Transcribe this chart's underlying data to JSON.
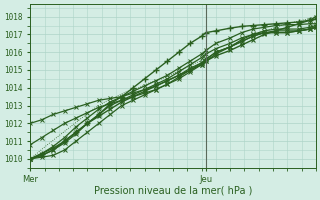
{
  "xlabel": "Pression niveau de la mer( hPa )",
  "bg_color": "#d4ede4",
  "grid_color": "#aed4c8",
  "line_color": "#2a6020",
  "dark_line": "#3a5a2a",
  "vline_color": "#5a6a5a",
  "x_ticks_labels": [
    "Mer",
    "Jeu"
  ],
  "x_ticks_pos": [
    0.0,
    0.615
  ],
  "vline_pos": 0.615,
  "ylim": [
    1009.5,
    1018.7
  ],
  "xlim": [
    0.0,
    1.0
  ],
  "yticks": [
    1010,
    1011,
    1012,
    1013,
    1014,
    1015,
    1016,
    1017,
    1018
  ],
  "series": [
    {
      "points": [
        [
          0.0,
          1010.0
        ],
        [
          0.04,
          1010.2
        ],
        [
          0.08,
          1010.5
        ],
        [
          0.12,
          1011.0
        ],
        [
          0.16,
          1011.5
        ],
        [
          0.2,
          1012.0
        ],
        [
          0.24,
          1012.4
        ],
        [
          0.28,
          1012.8
        ],
        [
          0.32,
          1013.2
        ],
        [
          0.36,
          1013.5
        ],
        [
          0.4,
          1013.8
        ],
        [
          0.44,
          1014.1
        ],
        [
          0.48,
          1014.4
        ],
        [
          0.52,
          1014.7
        ],
        [
          0.56,
          1015.0
        ],
        [
          0.6,
          1015.3
        ],
        [
          0.615,
          1015.5
        ],
        [
          0.65,
          1015.8
        ],
        [
          0.7,
          1016.1
        ],
        [
          0.74,
          1016.4
        ],
        [
          0.78,
          1016.7
        ],
        [
          0.82,
          1017.0
        ],
        [
          0.86,
          1017.2
        ],
        [
          0.9,
          1017.4
        ],
        [
          0.94,
          1017.6
        ],
        [
          0.98,
          1017.8
        ],
        [
          1.0,
          1018.0
        ]
      ],
      "color": "#2a6020",
      "lw": 1.0,
      "ls": "-",
      "marker": "x",
      "ms": 3.5,
      "mew": 0.8
    },
    {
      "points": [
        [
          0.0,
          1010.0
        ],
        [
          0.04,
          1010.3
        ],
        [
          0.08,
          1010.7
        ],
        [
          0.12,
          1011.2
        ],
        [
          0.16,
          1011.8
        ],
        [
          0.2,
          1012.3
        ],
        [
          0.24,
          1012.8
        ],
        [
          0.28,
          1013.2
        ],
        [
          0.32,
          1013.5
        ],
        [
          0.36,
          1013.8
        ],
        [
          0.4,
          1014.1
        ],
        [
          0.44,
          1014.4
        ],
        [
          0.48,
          1014.7
        ],
        [
          0.52,
          1015.1
        ],
        [
          0.56,
          1015.5
        ],
        [
          0.6,
          1015.9
        ],
        [
          0.615,
          1016.1
        ],
        [
          0.65,
          1016.5
        ],
        [
          0.7,
          1016.8
        ],
        [
          0.74,
          1017.1
        ],
        [
          0.78,
          1017.3
        ],
        [
          0.82,
          1017.4
        ],
        [
          0.86,
          1017.5
        ],
        [
          0.9,
          1017.55
        ],
        [
          0.94,
          1017.55
        ],
        [
          0.98,
          1017.6
        ],
        [
          1.0,
          1017.6
        ]
      ],
      "color": "#2a6020",
      "lw": 0.9,
      "ls": "-",
      "marker": "x",
      "ms": 3.0,
      "mew": 0.7
    },
    {
      "points": [
        [
          0.0,
          1010.0
        ],
        [
          0.04,
          1010.2
        ],
        [
          0.08,
          1010.5
        ],
        [
          0.12,
          1010.9
        ],
        [
          0.16,
          1011.4
        ],
        [
          0.2,
          1012.0
        ],
        [
          0.24,
          1012.5
        ],
        [
          0.28,
          1013.0
        ],
        [
          0.32,
          1013.3
        ],
        [
          0.36,
          1013.6
        ],
        [
          0.4,
          1013.9
        ],
        [
          0.44,
          1014.2
        ],
        [
          0.48,
          1014.5
        ],
        [
          0.52,
          1014.9
        ],
        [
          0.56,
          1015.3
        ],
        [
          0.6,
          1015.7
        ],
        [
          0.615,
          1015.9
        ],
        [
          0.65,
          1016.2
        ],
        [
          0.7,
          1016.5
        ],
        [
          0.74,
          1016.8
        ],
        [
          0.78,
          1017.0
        ],
        [
          0.82,
          1017.1
        ],
        [
          0.86,
          1017.1
        ],
        [
          0.9,
          1017.1
        ],
        [
          0.94,
          1017.2
        ],
        [
          0.98,
          1017.3
        ],
        [
          1.0,
          1017.4
        ]
      ],
      "color": "#2a6020",
      "lw": 0.9,
      "ls": "-",
      "marker": "x",
      "ms": 3.0,
      "mew": 0.7
    },
    {
      "points": [
        [
          0.0,
          1010.0
        ],
        [
          0.04,
          1010.1
        ],
        [
          0.08,
          1010.2
        ],
        [
          0.12,
          1010.5
        ],
        [
          0.16,
          1011.0
        ],
        [
          0.2,
          1011.5
        ],
        [
          0.24,
          1012.0
        ],
        [
          0.28,
          1012.5
        ],
        [
          0.32,
          1013.0
        ],
        [
          0.36,
          1013.3
        ],
        [
          0.4,
          1013.6
        ],
        [
          0.44,
          1013.9
        ],
        [
          0.48,
          1014.2
        ],
        [
          0.52,
          1014.6
        ],
        [
          0.56,
          1015.0
        ],
        [
          0.6,
          1015.4
        ],
        [
          0.615,
          1015.6
        ],
        [
          0.65,
          1016.0
        ],
        [
          0.7,
          1016.3
        ],
        [
          0.74,
          1016.6
        ],
        [
          0.78,
          1016.9
        ],
        [
          0.82,
          1017.1
        ],
        [
          0.86,
          1017.1
        ],
        [
          0.9,
          1017.1
        ],
        [
          0.94,
          1017.2
        ],
        [
          0.98,
          1017.3
        ],
        [
          1.0,
          1017.4
        ]
      ],
      "color": "#2a6020",
      "lw": 0.9,
      "ls": "-",
      "marker": "x",
      "ms": 3.0,
      "mew": 0.7
    },
    {
      "points": [
        [
          0.0,
          1010.8
        ],
        [
          0.04,
          1011.2
        ],
        [
          0.08,
          1011.6
        ],
        [
          0.12,
          1012.0
        ],
        [
          0.16,
          1012.3
        ],
        [
          0.2,
          1012.6
        ],
        [
          0.24,
          1012.9
        ],
        [
          0.28,
          1013.1
        ],
        [
          0.32,
          1013.3
        ],
        [
          0.36,
          1013.5
        ],
        [
          0.4,
          1013.7
        ],
        [
          0.44,
          1013.9
        ],
        [
          0.48,
          1014.2
        ],
        [
          0.52,
          1014.5
        ],
        [
          0.56,
          1014.9
        ],
        [
          0.6,
          1015.3
        ],
        [
          0.615,
          1015.5
        ],
        [
          0.65,
          1015.9
        ],
        [
          0.7,
          1016.3
        ],
        [
          0.74,
          1016.6
        ],
        [
          0.78,
          1016.9
        ],
        [
          0.82,
          1017.1
        ],
        [
          0.86,
          1017.2
        ],
        [
          0.9,
          1017.2
        ],
        [
          0.94,
          1017.2
        ],
        [
          0.98,
          1017.3
        ],
        [
          1.0,
          1017.4
        ]
      ],
      "color": "#2a6020",
      "lw": 0.9,
      "ls": "-",
      "marker": "x",
      "ms": 3.0,
      "mew": 0.7
    },
    {
      "points": [
        [
          0.0,
          1012.0
        ],
        [
          0.04,
          1012.2
        ],
        [
          0.08,
          1012.5
        ],
        [
          0.12,
          1012.7
        ],
        [
          0.16,
          1012.9
        ],
        [
          0.2,
          1013.1
        ],
        [
          0.24,
          1013.3
        ],
        [
          0.28,
          1013.4
        ],
        [
          0.32,
          1013.5
        ],
        [
          0.36,
          1013.7
        ],
        [
          0.4,
          1013.9
        ],
        [
          0.44,
          1014.1
        ],
        [
          0.48,
          1014.4
        ],
        [
          0.52,
          1014.7
        ],
        [
          0.56,
          1015.1
        ],
        [
          0.6,
          1015.4
        ],
        [
          0.615,
          1015.6
        ],
        [
          0.65,
          1016.0
        ],
        [
          0.7,
          1016.3
        ],
        [
          0.74,
          1016.7
        ],
        [
          0.78,
          1017.0
        ],
        [
          0.82,
          1017.2
        ],
        [
          0.86,
          1017.3
        ],
        [
          0.9,
          1017.3
        ],
        [
          0.94,
          1017.3
        ],
        [
          0.98,
          1017.4
        ],
        [
          1.0,
          1017.5
        ]
      ],
      "color": "#2a6020",
      "lw": 0.9,
      "ls": "-",
      "marker": "x",
      "ms": 3.0,
      "mew": 0.7
    },
    {
      "points": [
        [
          0.0,
          1010.0
        ],
        [
          0.04,
          1010.3
        ],
        [
          0.08,
          1010.6
        ],
        [
          0.12,
          1011.0
        ],
        [
          0.16,
          1011.5
        ],
        [
          0.2,
          1012.0
        ],
        [
          0.24,
          1012.5
        ],
        [
          0.28,
          1013.1
        ],
        [
          0.32,
          1013.5
        ],
        [
          0.36,
          1014.0
        ],
        [
          0.4,
          1014.5
        ],
        [
          0.44,
          1015.0
        ],
        [
          0.48,
          1015.5
        ],
        [
          0.52,
          1016.0
        ],
        [
          0.56,
          1016.5
        ],
        [
          0.6,
          1016.9
        ],
        [
          0.615,
          1017.1
        ],
        [
          0.65,
          1017.2
        ],
        [
          0.7,
          1017.35
        ],
        [
          0.74,
          1017.45
        ],
        [
          0.78,
          1017.5
        ],
        [
          0.82,
          1017.55
        ],
        [
          0.86,
          1017.6
        ],
        [
          0.9,
          1017.65
        ],
        [
          0.94,
          1017.7
        ],
        [
          0.98,
          1017.8
        ],
        [
          1.0,
          1017.85
        ]
      ],
      "color": "#2a6020",
      "lw": 1.0,
      "ls": "-",
      "marker": "+",
      "ms": 4.0,
      "mew": 1.0
    },
    {
      "points": [
        [
          0.0,
          1010.0
        ],
        [
          0.03,
          1010.4
        ],
        [
          0.06,
          1010.8
        ],
        [
          0.1,
          1011.3
        ],
        [
          0.14,
          1011.8
        ],
        [
          0.18,
          1012.3
        ],
        [
          0.22,
          1012.8
        ],
        [
          0.26,
          1013.2
        ],
        [
          0.3,
          1013.5
        ],
        [
          0.34,
          1013.8
        ],
        [
          0.38,
          1014.0
        ],
        [
          0.42,
          1014.3
        ],
        [
          0.46,
          1014.5
        ],
        [
          0.5,
          1014.8
        ],
        [
          0.54,
          1015.1
        ],
        [
          0.58,
          1015.4
        ],
        [
          0.615,
          1015.6
        ],
        [
          0.65,
          1016.0
        ],
        [
          0.7,
          1016.3
        ],
        [
          0.74,
          1016.7
        ],
        [
          0.78,
          1017.0
        ],
        [
          0.82,
          1017.2
        ],
        [
          0.86,
          1017.4
        ],
        [
          0.9,
          1017.6
        ],
        [
          0.94,
          1017.75
        ],
        [
          0.98,
          1017.9
        ],
        [
          1.0,
          1018.0
        ]
      ],
      "color": "#2a6020",
      "lw": 0.6,
      "ls": ":",
      "marker": null,
      "ms": 0,
      "mew": 0
    }
  ]
}
